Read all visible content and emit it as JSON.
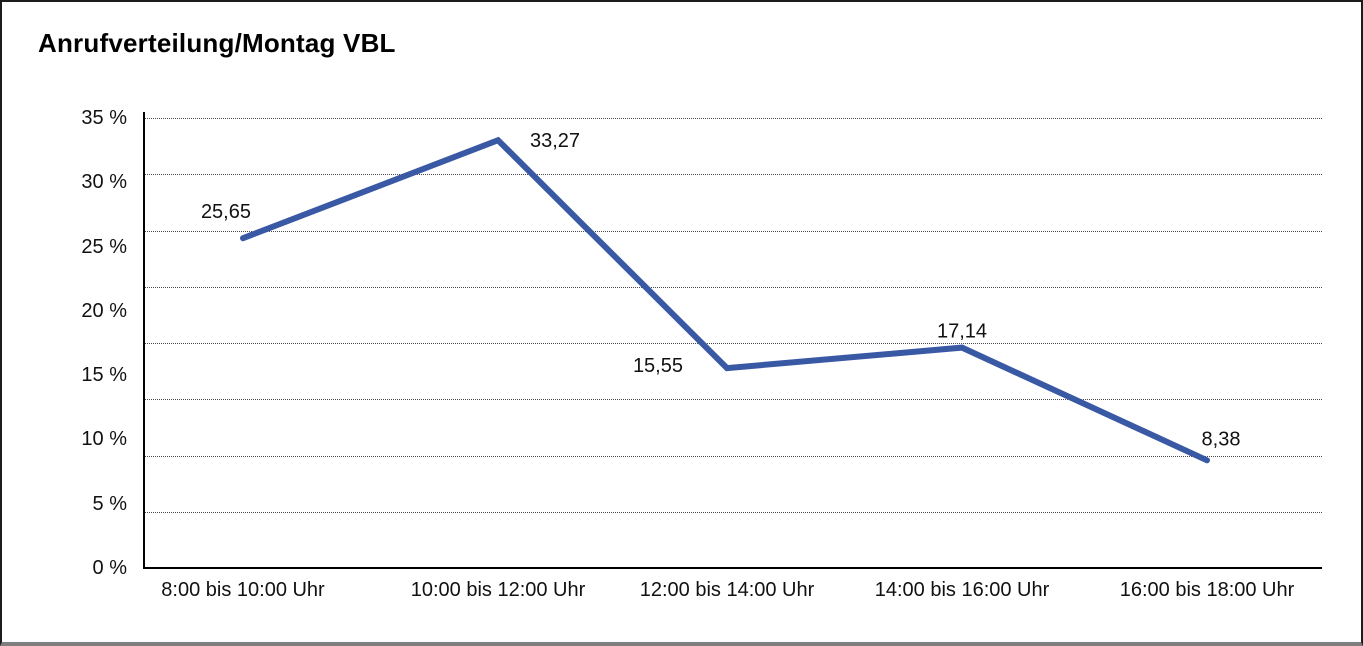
{
  "title": "Anrufverteilung/Montag VBL",
  "chart_data": {
    "type": "line",
    "title": "Anrufverteilung/Montag VBL",
    "categories": [
      "8:00 bis 10:00 Uhr",
      "10:00 bis 12:00 Uhr",
      "12:00 bis 14:00 Uhr",
      "14:00 bis 16:00 Uhr",
      "16:00 bis 18:00 Uhr"
    ],
    "values": [
      25.65,
      33.27,
      15.55,
      17.14,
      8.38
    ],
    "point_labels": [
      "25,65",
      "33,27",
      "15,55",
      "17,14",
      "8,38"
    ],
    "y_tick_labels": [
      "35 %",
      "30 %",
      "25 %",
      "20 %",
      "15 %",
      "10 %",
      "5 %",
      "0 %"
    ],
    "y_ticks": [
      35,
      30,
      25,
      20,
      15,
      10,
      5,
      0
    ],
    "ylim": [
      0,
      35
    ],
    "xlabel": "",
    "ylabel": "",
    "legend": "none",
    "grid": "horizontal-dotted",
    "grid_divisions": 8,
    "colors": {
      "line": "#3A59A5",
      "text": "#111111",
      "grid": "#4a4a4a",
      "axis": "#000000"
    }
  }
}
